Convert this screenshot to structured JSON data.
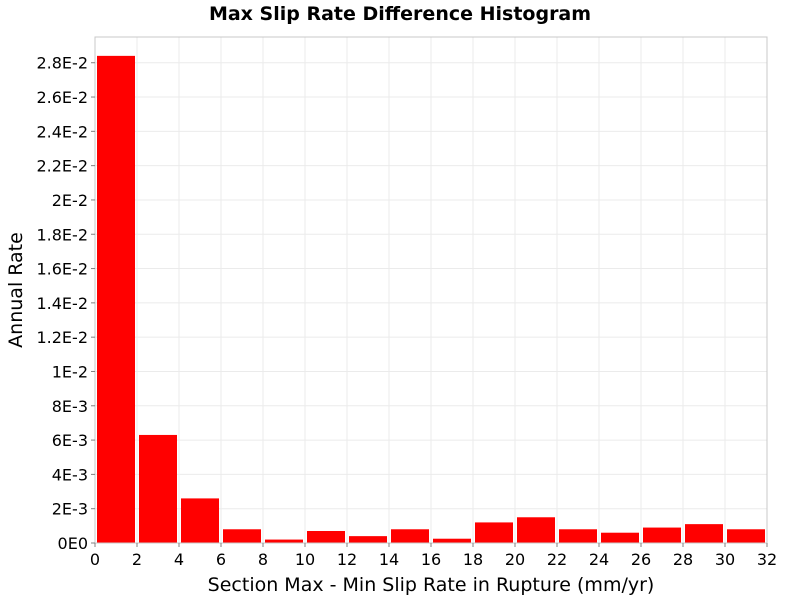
{
  "chart_data": {
    "type": "bar",
    "title": "Max Slip Rate Difference Histogram",
    "xlabel": "Section Max - Min Slip Rate in Rupture (mm/yr)",
    "ylabel": "Annual Rate",
    "xlim": [
      0,
      32
    ],
    "ylim": [
      0,
      0.0295
    ],
    "grid": true,
    "bar_color": "#ff0000",
    "bin_width": 2,
    "x": [
      1,
      3,
      5,
      7,
      9,
      11,
      13,
      15,
      17,
      19,
      21,
      23,
      25,
      27,
      29,
      31
    ],
    "values": [
      0.0284,
      0.0063,
      0.0026,
      0.0008,
      0.0002,
      0.0007,
      0.0004,
      0.0008,
      0.00025,
      0.0012,
      0.0015,
      0.0008,
      0.0006,
      0.0009,
      0.0011,
      0.0008
    ],
    "x_ticks": [
      0,
      2,
      4,
      6,
      8,
      10,
      12,
      14,
      16,
      18,
      20,
      22,
      24,
      26,
      28,
      30,
      32
    ],
    "x_tick_labels": [
      "0",
      "2",
      "4",
      "6",
      "8",
      "10",
      "12",
      "14",
      "16",
      "18",
      "20",
      "22",
      "24",
      "26",
      "28",
      "30",
      "32"
    ],
    "y_ticks": [
      0,
      0.002,
      0.004,
      0.006,
      0.008,
      0.01,
      0.012,
      0.014,
      0.016,
      0.018,
      0.02,
      0.022,
      0.024,
      0.026,
      0.028
    ],
    "y_tick_labels": [
      "0E0",
      "2E-3",
      "4E-3",
      "6E-3",
      "8E-3",
      "1E-2",
      "1.2E-2",
      "1.4E-2",
      "1.6E-2",
      "1.8E-2",
      "2E-2",
      "2.2E-2",
      "2.4E-2",
      "2.6E-2",
      "2.8E-2"
    ]
  }
}
